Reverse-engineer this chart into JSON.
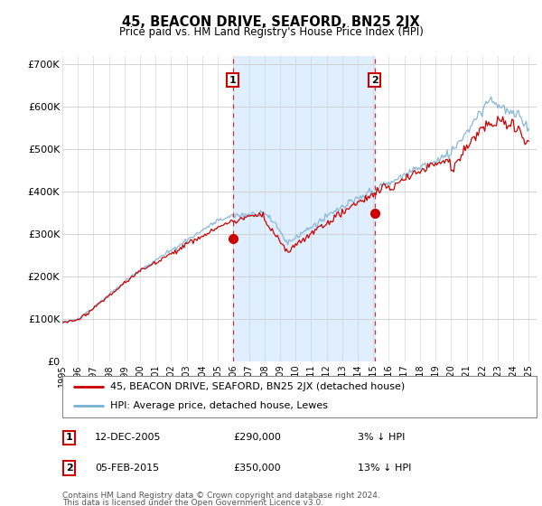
{
  "title": "45, BEACON DRIVE, SEAFORD, BN25 2JX",
  "subtitle": "Price paid vs. HM Land Registry's House Price Index (HPI)",
  "ylabel_ticks": [
    "£0",
    "£100K",
    "£200K",
    "£300K",
    "£400K",
    "£500K",
    "£600K",
    "£700K"
  ],
  "ytick_values": [
    0,
    100000,
    200000,
    300000,
    400000,
    500000,
    600000,
    700000
  ],
  "ylim": [
    0,
    720000
  ],
  "xlim_start": 1995.0,
  "xlim_end": 2025.5,
  "sale1_x": 2005.96,
  "sale1_y": 290000,
  "sale1_label": "1",
  "sale1_date": "12-DEC-2005",
  "sale1_price": "£290,000",
  "sale1_hpi": "3% ↓ HPI",
  "sale2_x": 2015.09,
  "sale2_y": 350000,
  "sale2_label": "2",
  "sale2_date": "05-FEB-2015",
  "sale2_price": "£350,000",
  "sale2_hpi": "13% ↓ HPI",
  "line_color_red": "#cc0000",
  "line_color_blue": "#7ab0d4",
  "marker_box_color": "#cc0000",
  "dashed_color": "#cc0000",
  "shade_color": "#ddeeff",
  "legend_label_red": "45, BEACON DRIVE, SEAFORD, BN25 2JX (detached house)",
  "legend_label_blue": "HPI: Average price, detached house, Lewes",
  "footer1": "Contains HM Land Registry data © Crown copyright and database right 2024.",
  "footer2": "This data is licensed under the Open Government Licence v3.0.",
  "background_color": "#ffffff",
  "plot_bg_color": "#ffffff"
}
